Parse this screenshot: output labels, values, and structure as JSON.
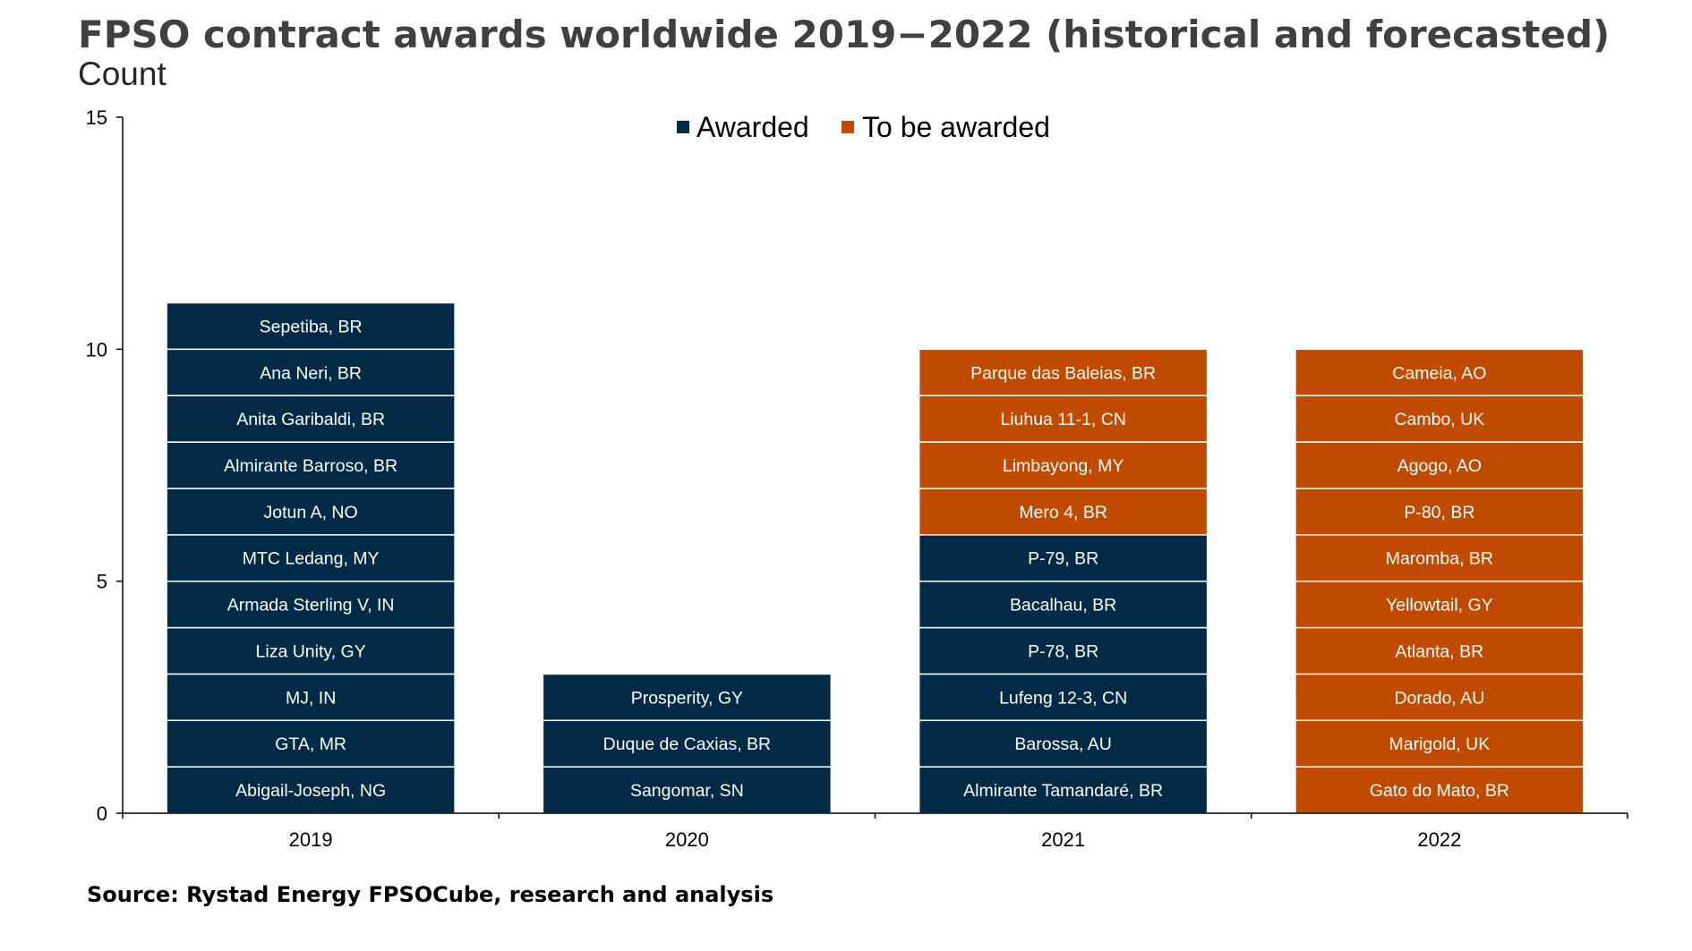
{
  "title": "FPSO contract awards worldwide 2019−2022 (historical and forecasted)",
  "subtitle": "Count",
  "source": "Source: Rystad Energy FPSOCube, research and analysis",
  "colors": {
    "awarded": "#002a46",
    "to_be_awarded": "#c04b00",
    "axis": "#000000",
    "segment_border": "#ffffff"
  },
  "chart_data": {
    "type": "bar",
    "stacked": true,
    "title": "FPSO contract awards worldwide 2019−2022 (historical and forecasted)",
    "ylabel": "Count",
    "xlabel": "",
    "ylim": [
      0,
      15
    ],
    "yticks": [
      0,
      5,
      10,
      15
    ],
    "grid": false,
    "legend_position": "top-center",
    "categories": [
      "2019",
      "2020",
      "2021",
      "2022"
    ],
    "series": [
      {
        "name": "Awarded",
        "values": [
          11,
          3,
          6,
          0
        ]
      },
      {
        "name": "To be awarded",
        "values": [
          0,
          0,
          4,
          10
        ]
      }
    ],
    "segments": [
      {
        "category": "2019",
        "series": "Awarded",
        "items": [
          "Abigail-Joseph, NG",
          "GTA, MR",
          "MJ, IN",
          "Liza Unity, GY",
          "Armada Sterling V, IN",
          "MTC Ledang, MY",
          "Jotun A, NO",
          "Almirante Barroso, BR",
          "Anita Garibaldi, BR",
          "Ana Neri, BR",
          "Sepetiba, BR"
        ]
      },
      {
        "category": "2020",
        "series": "Awarded",
        "items": [
          "Sangomar, SN",
          "Duque de Caxias, BR",
          "Prosperity, GY"
        ]
      },
      {
        "category": "2021",
        "series": "Awarded",
        "items": [
          "Almirante Tamandaré, BR",
          "Barossa, AU",
          "Lufeng 12-3, CN",
          "P-78, BR",
          "Bacalhau, BR",
          "P-79, BR"
        ]
      },
      {
        "category": "2021",
        "series": "To be awarded",
        "items": [
          "Mero 4, BR",
          "Limbayong, MY",
          "Liuhua 11-1, CN",
          "Parque das Baleias, BR"
        ]
      },
      {
        "category": "2022",
        "series": "To be awarded",
        "items": [
          "Gato do Mato, BR",
          "Marigold, UK",
          "Dorado, AU",
          "Atlanta, BR",
          "Yellowtail, GY",
          "Maromba, BR",
          "P-80, BR",
          "Agogo, AO",
          "Cambo, UK",
          "Cameia, AO"
        ]
      }
    ]
  }
}
